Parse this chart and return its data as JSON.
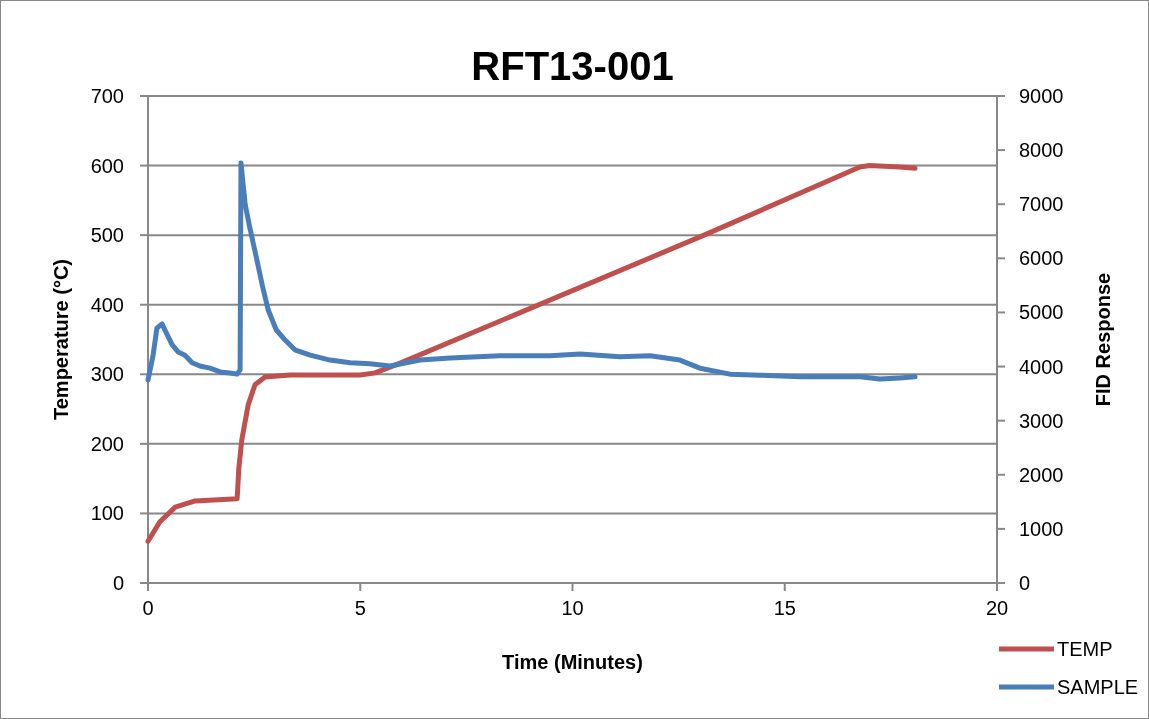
{
  "chart_data": {
    "type": "line",
    "title": "RFT13-001",
    "xlabel": "Time (Minutes)",
    "ylabel": "Temperature (°C)",
    "y2label": "FID Response",
    "xlim": [
      0,
      20
    ],
    "xticks": [
      0,
      5,
      10,
      15,
      20
    ],
    "ylim": [
      0,
      700
    ],
    "yticks": [
      0,
      100,
      200,
      300,
      400,
      500,
      600,
      700
    ],
    "y2lim": [
      0,
      9000
    ],
    "y2ticks": [
      0,
      1000,
      2000,
      3000,
      4000,
      5000,
      6000,
      7000,
      8000,
      9000
    ],
    "grid": "y",
    "legend": "bottom right",
    "marker": "none",
    "line_style": "solid",
    "series": [
      {
        "name": "TEMP",
        "color": "#c0504d",
        "x": [
          0,
          0.28,
          0.64,
          1.11,
          2.1,
          2.14,
          2.21,
          2.36,
          2.52,
          2.76,
          3.35,
          5.0,
          5.35,
          5.94,
          13.1,
          16.77,
          17.0,
          17.71,
          18.07
        ],
        "values": [
          60,
          88,
          109,
          118,
          121,
          165,
          206,
          256,
          285,
          296,
          299,
          299,
          302,
          316,
          500,
          598,
          600,
          598,
          596
        ]
      },
      {
        "name": "SAMPLE",
        "color": "#4a7ebb",
        "axis": "y2",
        "x": [
          0,
          0.12,
          0.21,
          0.33,
          0.42,
          0.57,
          0.71,
          0.87,
          1.04,
          1.22,
          1.46,
          1.7,
          1.93,
          2.1,
          2.17,
          2.19,
          2.29,
          2.4,
          2.54,
          2.69,
          2.83,
          3.02,
          3.23,
          3.46,
          3.82,
          4.29,
          4.76,
          5.23,
          5.7,
          6.41,
          7.12,
          8.29,
          9.47,
          10.18,
          11.12,
          11.83,
          12.53,
          13.0,
          13.71,
          14.42,
          15.36,
          16.07,
          16.77,
          17.24,
          17.71,
          18.07
        ],
        "values": [
          3750,
          4210,
          4710,
          4790,
          4640,
          4400,
          4270,
          4210,
          4070,
          4010,
          3970,
          3900,
          3880,
          3860,
          3940,
          7760,
          6990,
          6560,
          6060,
          5510,
          5050,
          4680,
          4490,
          4310,
          4210,
          4120,
          4070,
          4050,
          4010,
          4120,
          4160,
          4200,
          4200,
          4230,
          4180,
          4200,
          4120,
          3970,
          3860,
          3840,
          3810,
          3810,
          3810,
          3770,
          3790,
          3810
        ]
      }
    ]
  }
}
